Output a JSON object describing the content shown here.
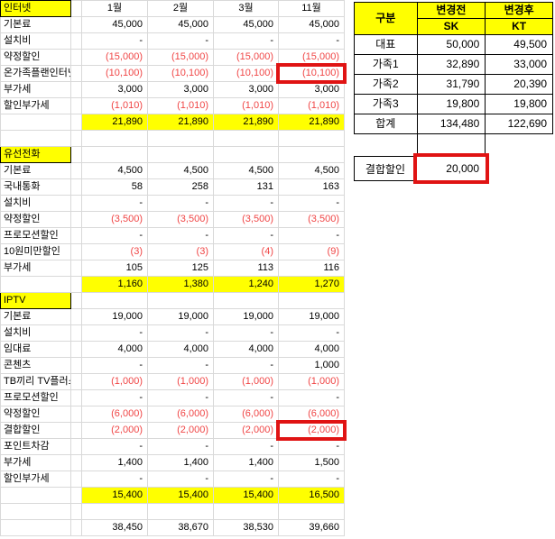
{
  "colors": {
    "highlight_yellow": "#ffff00",
    "negative_red": "#f04646",
    "annotation_box_red": "#e01313",
    "gridline_gray": "#d9d9d9"
  },
  "left_table": {
    "months": [
      "1월",
      "2월",
      "3월",
      "11월"
    ],
    "rows": [
      {
        "type": "header",
        "label": "인터넷",
        "values": [
          "1월",
          "2월",
          "3월",
          "11월"
        ]
      },
      {
        "type": "data",
        "label": "기본료",
        "values": [
          "45,000",
          "45,000",
          "45,000",
          "45,000"
        ]
      },
      {
        "type": "data",
        "label": "설치비",
        "values": [
          "-",
          "-",
          "-",
          "-"
        ]
      },
      {
        "type": "data",
        "label": "약정할인",
        "values": [
          "(15,000)",
          "(15,000)",
          "(15,000)",
          "(15,000)"
        ]
      },
      {
        "type": "data",
        "label": "온가족플랜인터넷",
        "values": [
          "(10,100)",
          "(10,100)",
          "(10,100)",
          "(10,100)"
        ],
        "highlight": 3
      },
      {
        "type": "data",
        "label": "부가세",
        "values": [
          "3,000",
          "3,000",
          "3,000",
          "3,000"
        ]
      },
      {
        "type": "data",
        "label": "할인부가세",
        "values": [
          "(1,010)",
          "(1,010)",
          "(1,010)",
          "(1,010)"
        ]
      },
      {
        "type": "total",
        "label": "",
        "values": [
          "21,890",
          "21,890",
          "21,890",
          "21,890"
        ]
      },
      {
        "type": "empty"
      },
      {
        "type": "section",
        "label": "유선전화"
      },
      {
        "type": "data",
        "label": "기본료",
        "values": [
          "4,500",
          "4,500",
          "4,500",
          "4,500"
        ]
      },
      {
        "type": "data",
        "label": "국내통화",
        "values": [
          "58",
          "258",
          "131",
          "163"
        ]
      },
      {
        "type": "data",
        "label": "설치비",
        "values": [
          "-",
          "-",
          "-",
          "-"
        ]
      },
      {
        "type": "data",
        "label": "약정할인",
        "values": [
          "(3,500)",
          "(3,500)",
          "(3,500)",
          "(3,500)"
        ]
      },
      {
        "type": "data",
        "label": "프로모션할인",
        "values": [
          "-",
          "-",
          "-",
          "-"
        ]
      },
      {
        "type": "data",
        "label": "10원미만할인",
        "values": [
          "(3)",
          "(3)",
          "(4)",
          "(9)"
        ]
      },
      {
        "type": "data",
        "label": "부가세",
        "values": [
          "105",
          "125",
          "113",
          "116"
        ]
      },
      {
        "type": "total",
        "label": "",
        "values": [
          "1,160",
          "1,380",
          "1,240",
          "1,270"
        ]
      },
      {
        "type": "section",
        "label": "IPTV"
      },
      {
        "type": "data",
        "label": "기본료",
        "values": [
          "19,000",
          "19,000",
          "19,000",
          "19,000"
        ]
      },
      {
        "type": "data",
        "label": "설치비",
        "values": [
          "-",
          "-",
          "-",
          "-"
        ]
      },
      {
        "type": "data",
        "label": "임대료",
        "values": [
          "4,000",
          "4,000",
          "4,000",
          "4,000"
        ]
      },
      {
        "type": "data",
        "label": "콘첸츠",
        "values": [
          "-",
          "-",
          "-",
          "1,000"
        ]
      },
      {
        "type": "data",
        "label": "TB끼리 TV플러스",
        "values": [
          "(1,000)",
          "(1,000)",
          "(1,000)",
          "(1,000)"
        ]
      },
      {
        "type": "data",
        "label": "프로모션할인",
        "values": [
          "-",
          "-",
          "-",
          "-"
        ]
      },
      {
        "type": "data",
        "label": "약정할인",
        "values": [
          "(6,000)",
          "(6,000)",
          "(6,000)",
          "(6,000)"
        ]
      },
      {
        "type": "data",
        "label": "결합할인",
        "values": [
          "(2,000)",
          "(2,000)",
          "(2,000)",
          "(2,000)"
        ],
        "highlight": 3
      },
      {
        "type": "data",
        "label": "포인트차감",
        "values": [
          "-",
          "-",
          "-",
          "-"
        ]
      },
      {
        "type": "data",
        "label": "부가세",
        "values": [
          "1,400",
          "1,400",
          "1,400",
          "1,500"
        ]
      },
      {
        "type": "data",
        "label": "할인부가세",
        "values": [
          "-",
          "-",
          "-",
          "-"
        ]
      },
      {
        "type": "total",
        "label": "",
        "values": [
          "15,400",
          "15,400",
          "15,400",
          "16,500"
        ]
      },
      {
        "type": "empty"
      },
      {
        "type": "grand",
        "label": "",
        "values": [
          "38,450",
          "38,670",
          "38,530",
          "39,660"
        ]
      }
    ]
  },
  "right_table": {
    "corner_label": "구분",
    "col_headers": [
      "변경전",
      "변경후"
    ],
    "sub_headers": [
      "SK",
      "KT"
    ],
    "rows": [
      {
        "label": "대표",
        "before": "50,000",
        "after": "49,500"
      },
      {
        "label": "가족1",
        "before": "32,890",
        "after": "33,000"
      },
      {
        "label": "가족2",
        "before": "31,790",
        "after": "20,390"
      },
      {
        "label": "가족3",
        "before": "19,800",
        "after": "19,800"
      },
      {
        "label": "합계",
        "before": "134,480",
        "after": "122,690"
      }
    ],
    "discount": {
      "label": "결합할인",
      "value": "20,000"
    }
  }
}
